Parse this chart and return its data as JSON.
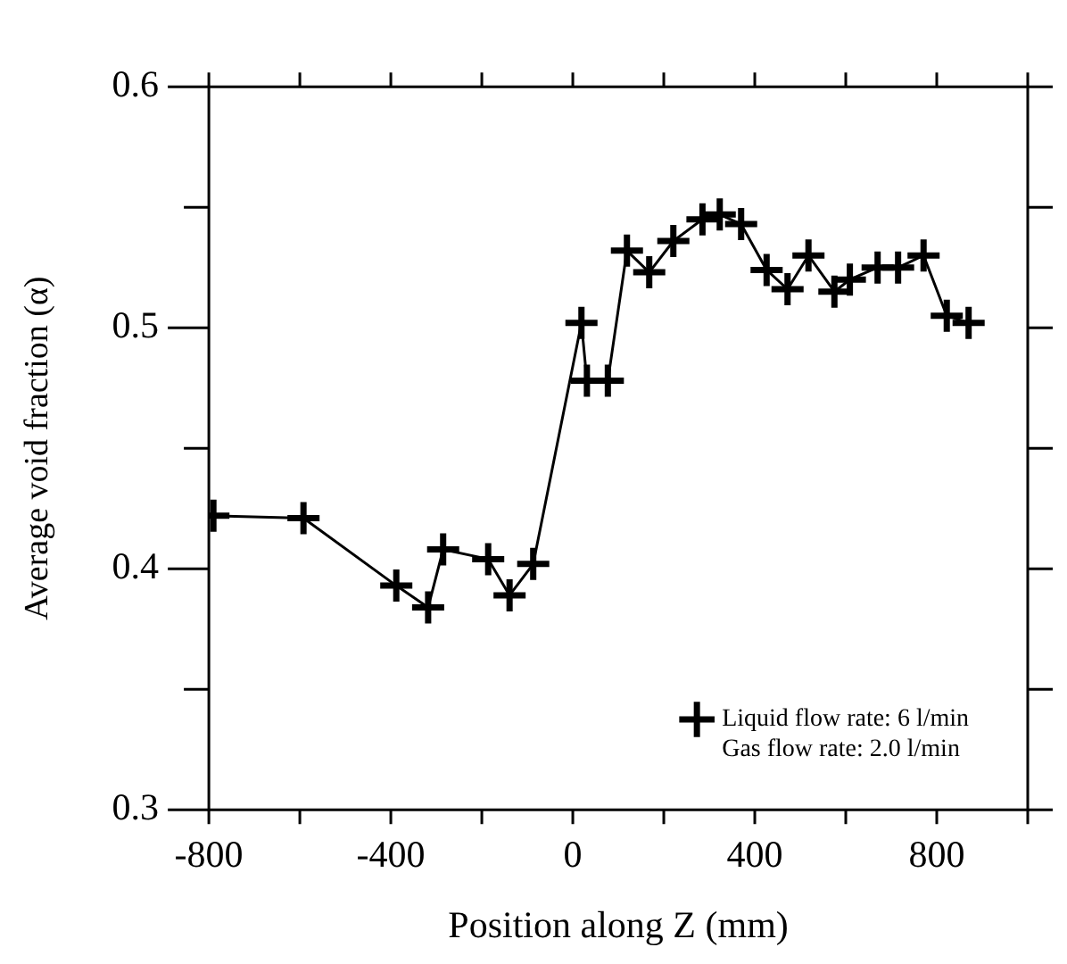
{
  "chart_data": {
    "type": "line",
    "xlabel": "Position along Z (mm)",
    "ylabel": "Average void fraction (α)",
    "x": [
      -790,
      -592,
      -388,
      -318,
      -285,
      -186,
      -139,
      -87,
      19,
      31,
      77,
      119,
      168,
      221,
      285,
      323,
      370,
      426,
      472,
      518,
      575,
      609,
      670,
      715,
      771,
      822,
      870
    ],
    "series": [
      {
        "name": "Liquid flow rate: 6 l/min\nGas flow rate: 2.0 l/min",
        "color": "#000000",
        "values": [
          0.422,
          0.421,
          0.393,
          0.384,
          0.408,
          0.404,
          0.389,
          0.402,
          0.502,
          0.478,
          0.478,
          0.532,
          0.523,
          0.536,
          0.545,
          0.547,
          0.543,
          0.524,
          0.516,
          0.53,
          0.515,
          0.52,
          0.525,
          0.525,
          0.53,
          0.505,
          0.502
        ]
      }
    ],
    "xlim": [
      -800,
      1000
    ],
    "xticks": [
      -800,
      {
        "value": -600,
        "label": null
      },
      -400,
      {
        "value": -200,
        "label": null
      },
      0,
      {
        "value": 200,
        "label": null
      },
      400,
      {
        "value": 600,
        "label": null
      },
      800,
      {
        "value": 1000,
        "label": null
      }
    ],
    "ylim": [
      0.3,
      0.6
    ],
    "yticks": [
      0.3,
      {
        "value": 0.35,
        "label": null
      },
      0.4,
      {
        "value": 0.45,
        "label": null
      },
      0.5,
      {
        "value": 0.55,
        "label": null
      },
      0.6
    ],
    "grid": false,
    "legend": "bottom right",
    "marker": "cross",
    "line_style": "solid"
  }
}
